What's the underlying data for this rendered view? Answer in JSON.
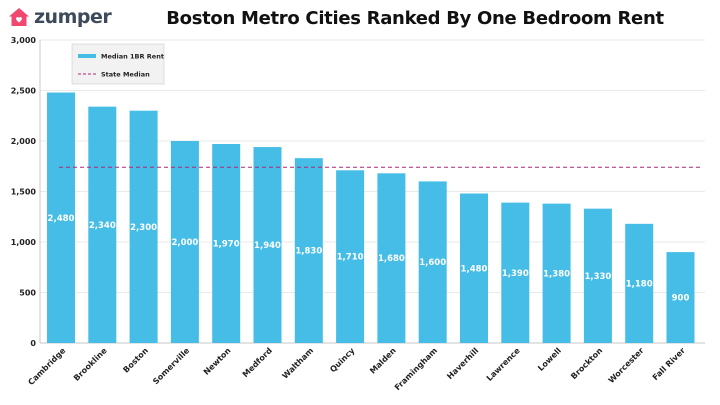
{
  "brand": {
    "name": "zumper",
    "accent": "#f0486e",
    "text_color": "#3d4a5c"
  },
  "chart_data": {
    "type": "bar",
    "title": "Boston Metro Cities Ranked By One Bedroom Rent",
    "categories": [
      "Cambridge",
      "Brookline",
      "Boston",
      "Somerville",
      "Newton",
      "Medford",
      "Waltham",
      "Quincy",
      "Malden",
      "Framingham",
      "Haverhill",
      "Lawrence",
      "Lowell",
      "Brockton",
      "Worcester",
      "Fall River"
    ],
    "series": [
      {
        "name": "Median 1BR Rent",
        "values": [
          2480,
          2340,
          2300,
          2000,
          1970,
          1940,
          1830,
          1710,
          1680,
          1600,
          1480,
          1390,
          1380,
          1330,
          1180,
          900
        ],
        "color": "#45bde6"
      }
    ],
    "value_labels": [
      "2,480",
      "2,340",
      "2,300",
      "2,000",
      "1,970",
      "1,940",
      "1,830",
      "1,710",
      "1,680",
      "1,600",
      "1,480",
      "1,390",
      "1,380",
      "1,330",
      "1,180",
      "900"
    ],
    "reference_line": {
      "name": "State Median",
      "value": 1740,
      "color": "#b0267a",
      "style": "dashed"
    },
    "ylim": [
      0,
      3000
    ],
    "yticks": [
      0,
      500,
      1000,
      1500,
      2000,
      2500,
      3000
    ],
    "ytick_labels": [
      "0",
      "500",
      "1,000",
      "1,500",
      "2,000",
      "2,500",
      "3,000"
    ],
    "xlabel": "",
    "ylabel": "",
    "grid": true,
    "legend": {
      "position": "top-left"
    }
  }
}
